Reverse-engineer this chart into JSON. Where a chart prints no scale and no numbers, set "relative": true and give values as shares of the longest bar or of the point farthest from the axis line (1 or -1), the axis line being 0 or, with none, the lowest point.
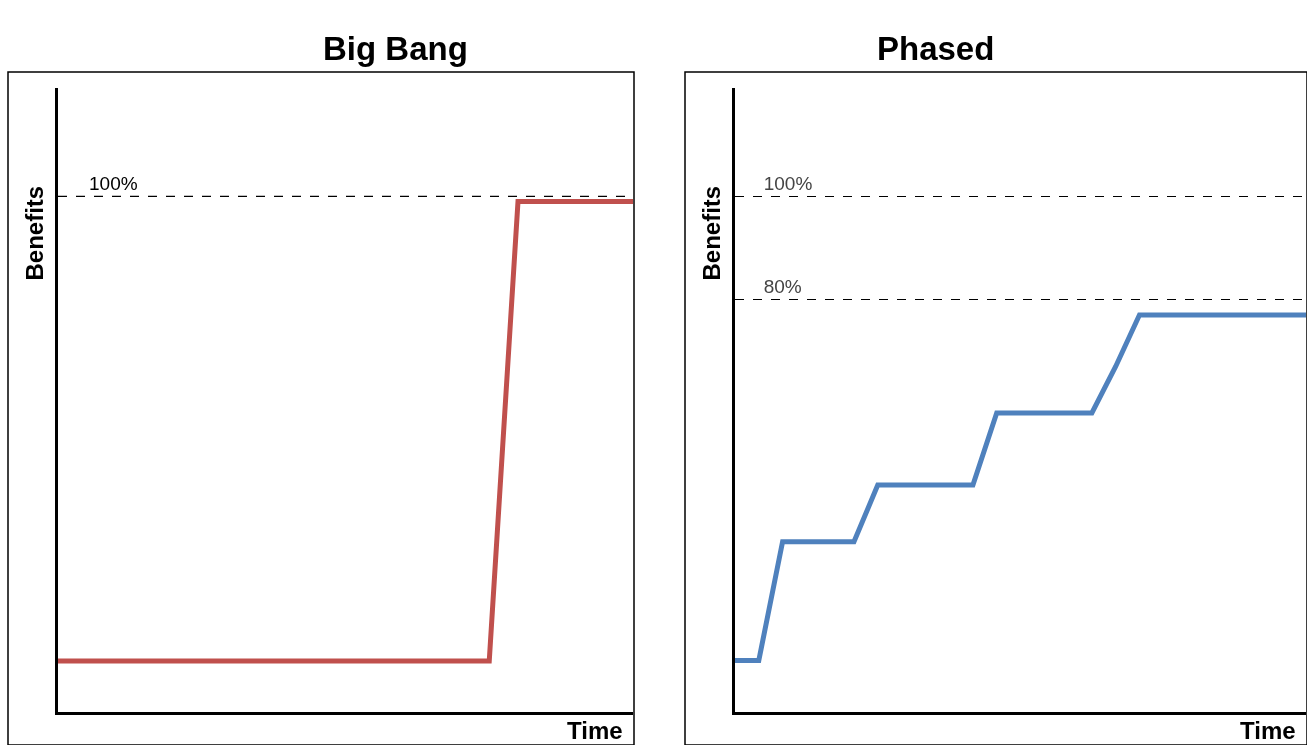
{
  "chart_data": [
    {
      "type": "line",
      "title": "Big Bang",
      "xlabel": "Time",
      "ylabel": "Benefits",
      "relative": true,
      "categories": [
        null,
        null,
        null,
        null,
        null,
        null,
        null,
        null,
        null,
        null,
        null,
        null,
        null,
        null,
        null,
        null,
        null,
        null,
        null,
        null,
        null
      ],
      "series": [
        {
          "color": "#c0504d",
          "values": [
            0.1,
            0.1,
            0.1,
            0.1,
            0.1,
            0.1,
            0.1,
            0.1,
            0.1,
            0.1,
            0.1,
            0.1,
            0.1,
            0.1,
            0.1,
            0.1,
            1,
            1,
            1,
            1,
            1
          ]
        }
      ],
      "ref_lines": [
        {
          "axis": "y",
          "value": 1.01,
          "color": "#000000",
          "line_style": "dashed"
        }
      ],
      "annotations": [
        "100%"
      ],
      "marker": "none",
      "line_style": "solid"
    },
    {
      "type": "line",
      "title": "Phased",
      "xlabel": "Time",
      "ylabel": "Benefits",
      "categories": [
        null,
        null,
        null,
        null,
        null,
        null,
        null,
        null,
        null,
        null,
        null,
        null,
        null,
        null,
        null,
        null,
        null,
        null,
        null,
        null,
        null,
        null,
        null,
        null,
        null
      ],
      "series": [
        {
          "color": "#4f81bd",
          "values": [
            10,
            10,
            33,
            33,
            33,
            33,
            44,
            44,
            44,
            44,
            44,
            58,
            58,
            58,
            58,
            58,
            67,
            77,
            77,
            77,
            77,
            77,
            77,
            77,
            77
          ]
        }
      ],
      "ylim": [
        0,
        121
      ],
      "yticks": [
        {
          "value": 80,
          "label": "80%"
        },
        {
          "value": 100,
          "label": "100%"
        }
      ],
      "grid": "y",
      "marker": "none",
      "line_style": "solid"
    }
  ]
}
